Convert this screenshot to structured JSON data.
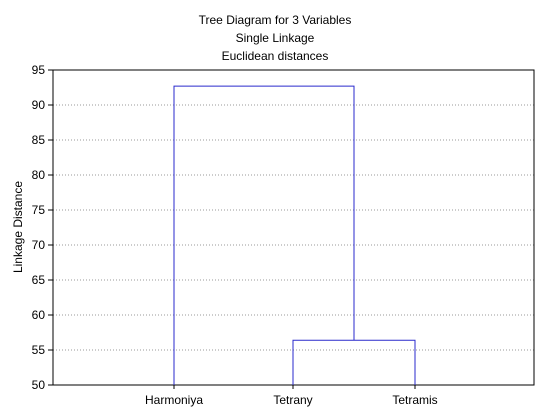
{
  "chart_data": {
    "type": "dendrogram",
    "title": "Tree Diagram for 3   Variables",
    "subtitle_lines": [
      "Single Linkage",
      "Euclidean distances"
    ],
    "ylabel": "Linkage Distance",
    "xlabel": "",
    "ylim": [
      50,
      95
    ],
    "yticks": [
      50,
      55,
      60,
      65,
      70,
      75,
      80,
      85,
      90,
      95
    ],
    "grid": true,
    "leaves": [
      "Harmoniya",
      "Tetrany",
      "Tetramis"
    ],
    "merges": [
      {
        "left": "Tetrany",
        "right": "Tetramis",
        "height": 56.4
      },
      {
        "left": "Harmoniya",
        "right": "Tetrany+Tetramis",
        "height": 92.7
      }
    ],
    "line_color": "#2a2acc",
    "grid_color": "#9a9a9a"
  }
}
